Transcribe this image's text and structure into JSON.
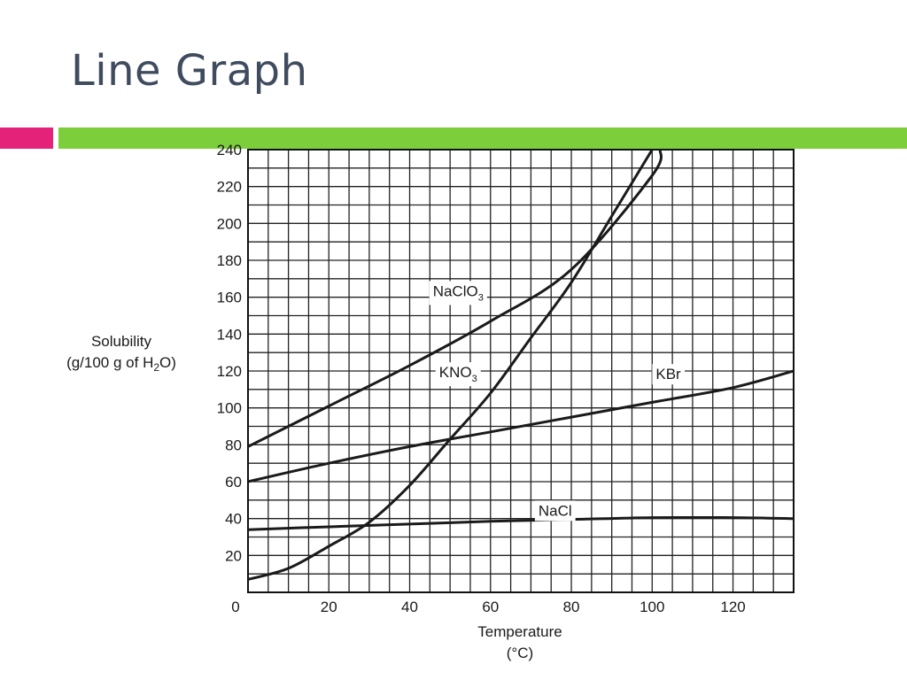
{
  "slide": {
    "title": "Line Graph",
    "colors": {
      "text": "#3f4b5f",
      "accent_pink": "#e5227a",
      "accent_green": "#7ccf3a"
    }
  },
  "chart_data": {
    "type": "line",
    "title": "",
    "xlabel": [
      "Temperature",
      "(°C)"
    ],
    "ylabel": [
      "Solubility",
      "(g/100 g of H2O)"
    ],
    "xlim": [
      0,
      135
    ],
    "ylim": [
      0,
      240
    ],
    "grid": true,
    "x_ticks": [
      "0",
      "20",
      "40",
      "60",
      "80",
      "100",
      "120"
    ],
    "y_ticks": [
      "20",
      "40",
      "60",
      "80",
      "100",
      "120",
      "140",
      "160",
      "180",
      "200",
      "220",
      "240"
    ],
    "series": [
      {
        "name": "NaClO3",
        "label_base": "NaClO",
        "label_sub": "3",
        "x": [
          0,
          20,
          40,
          60,
          80,
          100,
          102
        ],
        "y": [
          79,
          101,
          123,
          147,
          175,
          226,
          240
        ]
      },
      {
        "name": "KNO3",
        "label_base": "KNO",
        "label_sub": "3",
        "x": [
          0,
          10,
          20,
          30,
          40,
          50,
          60,
          70,
          80,
          90,
          100
        ],
        "y": [
          7,
          13,
          25,
          38,
          58,
          83,
          108,
          138,
          168,
          204,
          240
        ]
      },
      {
        "name": "KBr",
        "label_base": "KBr",
        "label_sub": "",
        "x": [
          0,
          20,
          40,
          60,
          80,
          100,
          120,
          135
        ],
        "y": [
          60,
          70,
          79,
          87,
          95,
          103,
          111,
          120
        ]
      },
      {
        "name": "NaCl",
        "label_base": "NaCl",
        "label_sub": "",
        "x": [
          0,
          20,
          40,
          60,
          80,
          100,
          120,
          135
        ],
        "y": [
          34,
          35.5,
          37,
          38.5,
          39.5,
          40.5,
          40.5,
          40
        ]
      }
    ],
    "series_label_positions": {
      "NaClO3": [
        52,
        163
      ],
      "KNO3": [
        52,
        119
      ],
      "KBr": [
        104,
        118
      ],
      "NaCl": [
        76,
        44
      ]
    }
  }
}
